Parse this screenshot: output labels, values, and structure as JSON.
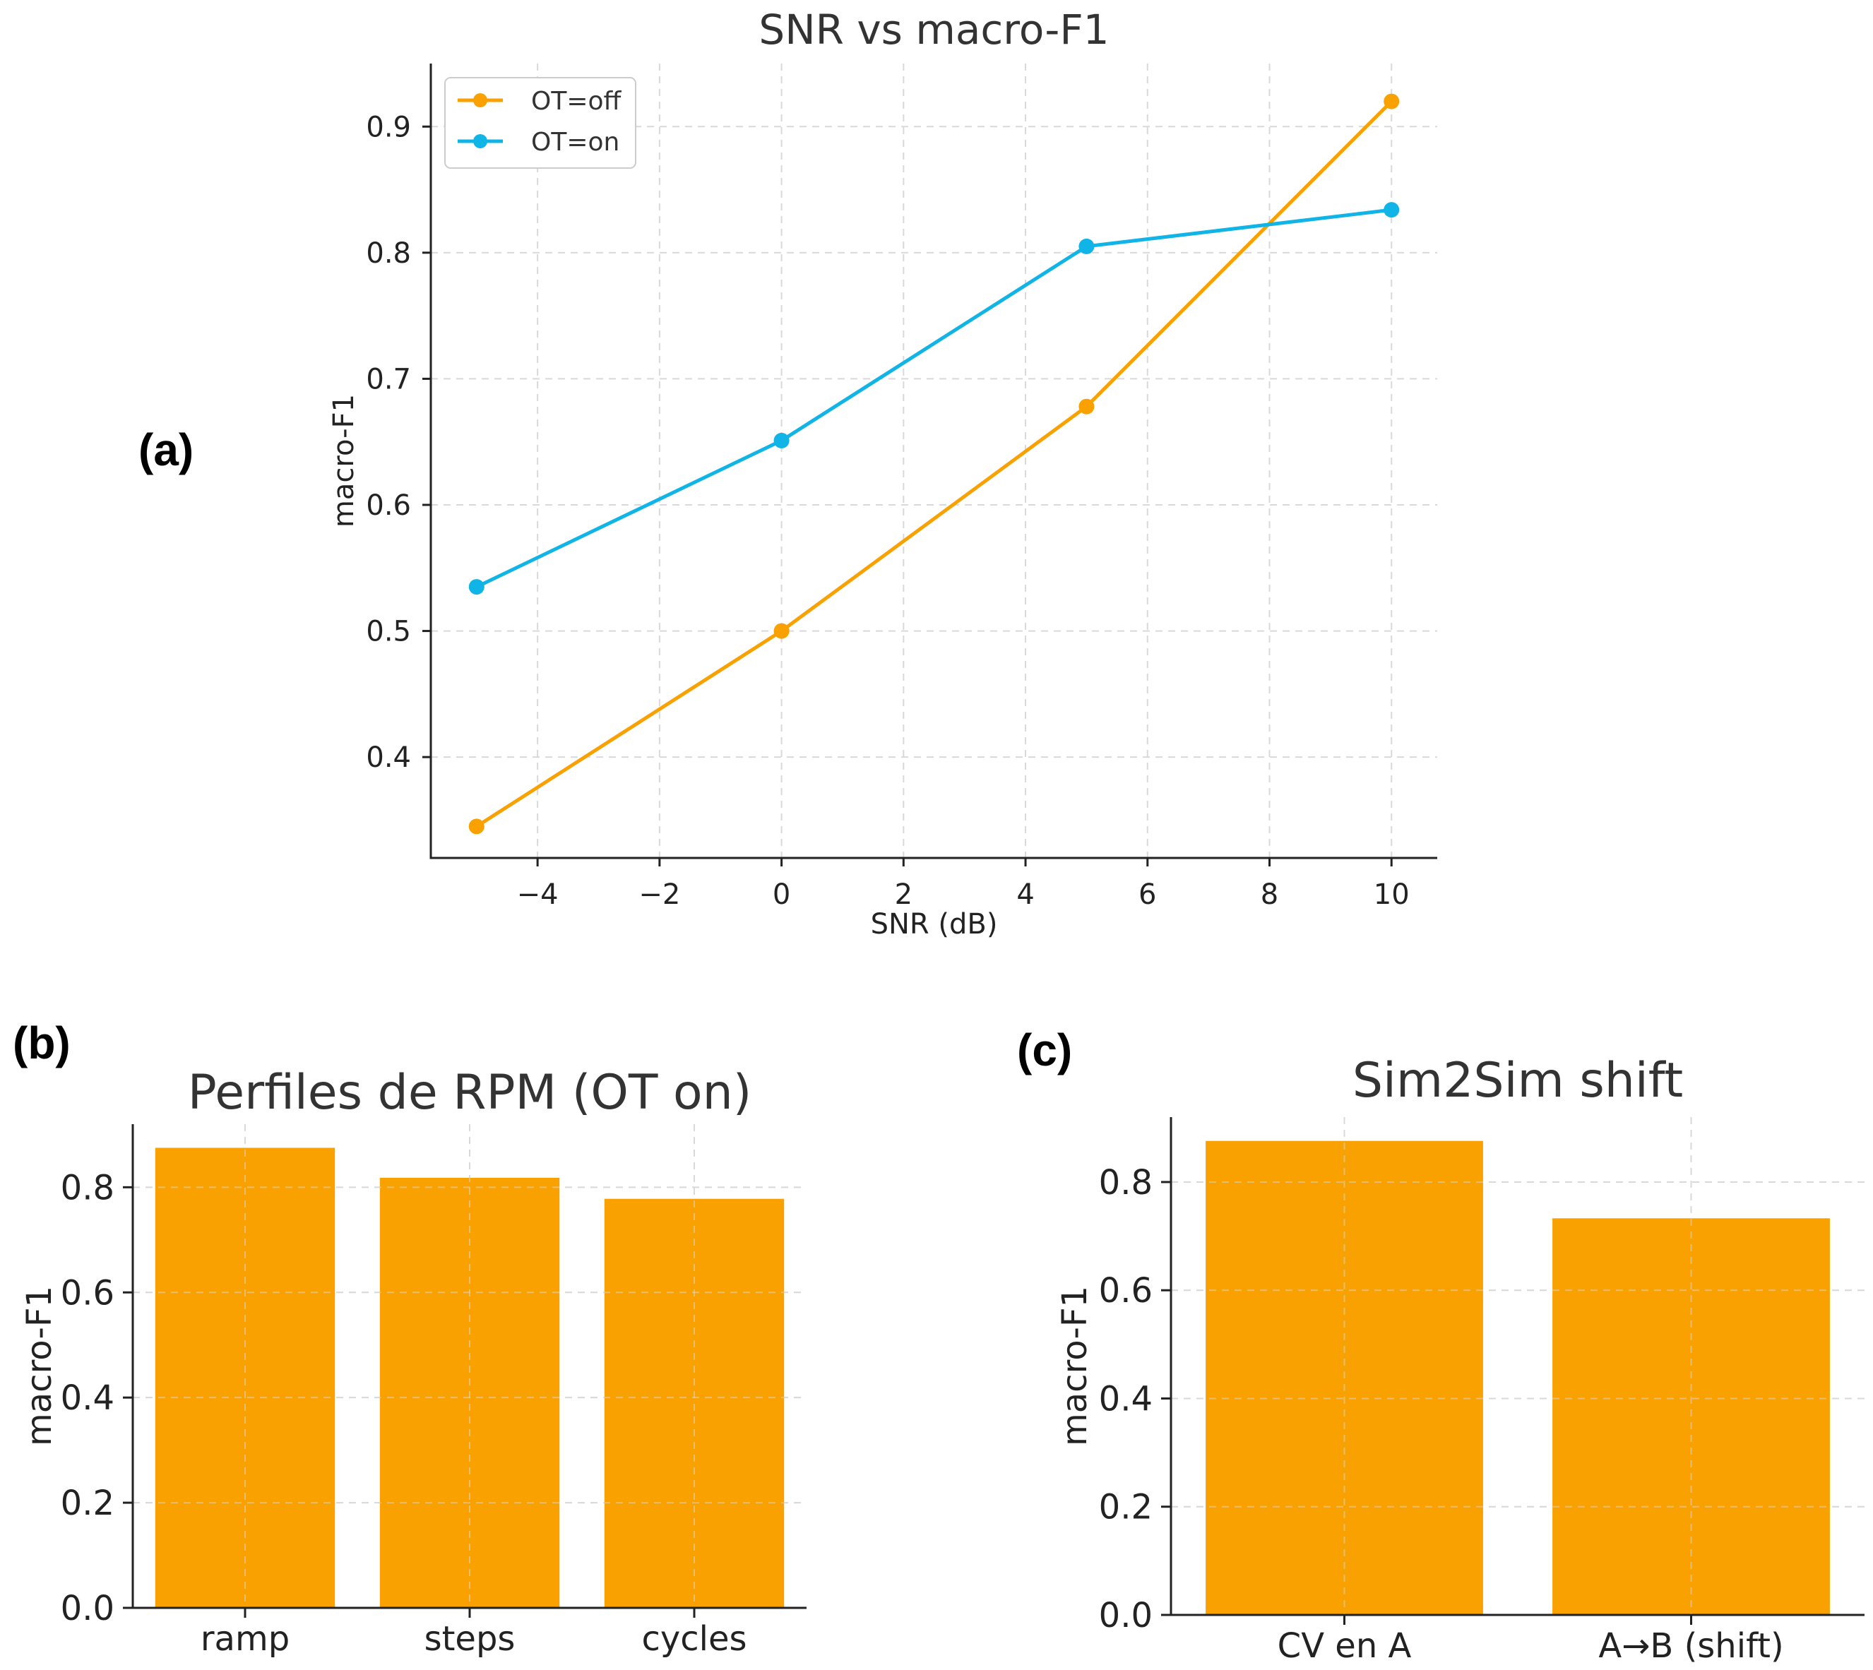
{
  "panel_labels": {
    "a": "(a)",
    "b": "(b)",
    "c": "(c)"
  },
  "colors": {
    "orange": "#F9A100",
    "blue": "#10B4E6",
    "grid": "#d9d9d9"
  },
  "chart_data": [
    {
      "panel": "(a)",
      "type": "line",
      "title": "SNR vs macro-F1",
      "xlabel": "SNR (dB)",
      "ylabel": "macro-F1",
      "xlim": [
        -5.75,
        10.75
      ],
      "ylim": [
        0.32,
        0.95
      ],
      "xticks": [
        -4,
        -2,
        0,
        2,
        4,
        6,
        8,
        10
      ],
      "xtick_labels": [
        "−4",
        "−2",
        "0",
        "2",
        "4",
        "6",
        "8",
        "10"
      ],
      "yticks": [
        0.4,
        0.5,
        0.6,
        0.7,
        0.8,
        0.9
      ],
      "ytick_labels": [
        "0.4",
        "0.5",
        "0.6",
        "0.7",
        "0.8",
        "0.9"
      ],
      "grid": true,
      "legend_position": "top-left",
      "x": [
        -5,
        0,
        5,
        10
      ],
      "series": [
        {
          "name": "OT=off",
          "color": "#F9A100",
          "values": [
            0.345,
            0.5,
            0.678,
            0.92
          ]
        },
        {
          "name": "OT=on",
          "color": "#10B4E6",
          "values": [
            0.535,
            0.651,
            0.805,
            0.834
          ]
        }
      ]
    },
    {
      "panel": "(b)",
      "type": "bar",
      "title": "Perfiles de RPM (OT on)",
      "xlabel": "",
      "ylabel": "macro-F1",
      "ylim": [
        0,
        0.92
      ],
      "yticks": [
        0.0,
        0.2,
        0.4,
        0.6,
        0.8
      ],
      "ytick_labels": [
        "0.0",
        "0.2",
        "0.4",
        "0.6",
        "0.8"
      ],
      "grid": true,
      "color": "#F9A100",
      "categories": [
        "ramp",
        "steps",
        "cycles"
      ],
      "values": [
        0.875,
        0.818,
        0.778
      ]
    },
    {
      "panel": "(c)",
      "type": "bar",
      "title": "Sim2Sim shift",
      "xlabel": "",
      "ylabel": "macro-F1",
      "ylim": [
        0,
        0.92
      ],
      "yticks": [
        0.0,
        0.2,
        0.4,
        0.6,
        0.8
      ],
      "ytick_labels": [
        "0.0",
        "0.2",
        "0.4",
        "0.6",
        "0.8"
      ],
      "grid": true,
      "color": "#F9A100",
      "categories": [
        "CV en A",
        "A→B (shift)"
      ],
      "values": [
        0.876,
        0.733
      ]
    }
  ]
}
